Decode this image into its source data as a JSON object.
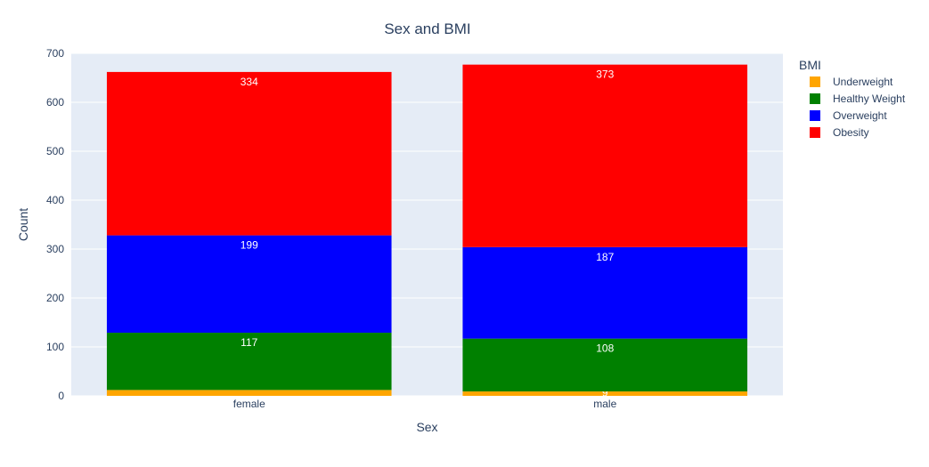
{
  "chart_data": {
    "type": "bar",
    "stacked": true,
    "title": "Sex and BMI",
    "xlabel": "Sex",
    "ylabel": "Count",
    "categories": [
      "female",
      "male"
    ],
    "ylim": [
      0,
      700
    ],
    "yticks": [
      0,
      100,
      200,
      300,
      400,
      500,
      600,
      700
    ],
    "grid": true,
    "legend_title": "BMI",
    "legend_position": "top-right",
    "series": [
      {
        "name": "Underweight",
        "color": "#FFA500",
        "values": [
          12,
          9
        ],
        "labels": [
          "",
          "9"
        ]
      },
      {
        "name": "Healthy Weight",
        "color": "#008000",
        "values": [
          117,
          108
        ],
        "labels": [
          "117",
          "108"
        ]
      },
      {
        "name": "Overweight",
        "color": "#0000FF",
        "values": [
          199,
          187
        ],
        "labels": [
          "199",
          "187"
        ]
      },
      {
        "name": "Obesity",
        "color": "#FF0000",
        "values": [
          334,
          373
        ],
        "labels": [
          "334",
          "373"
        ]
      }
    ],
    "background_color": "#E5ECF6",
    "gridline_color": "#FFFFFF"
  }
}
